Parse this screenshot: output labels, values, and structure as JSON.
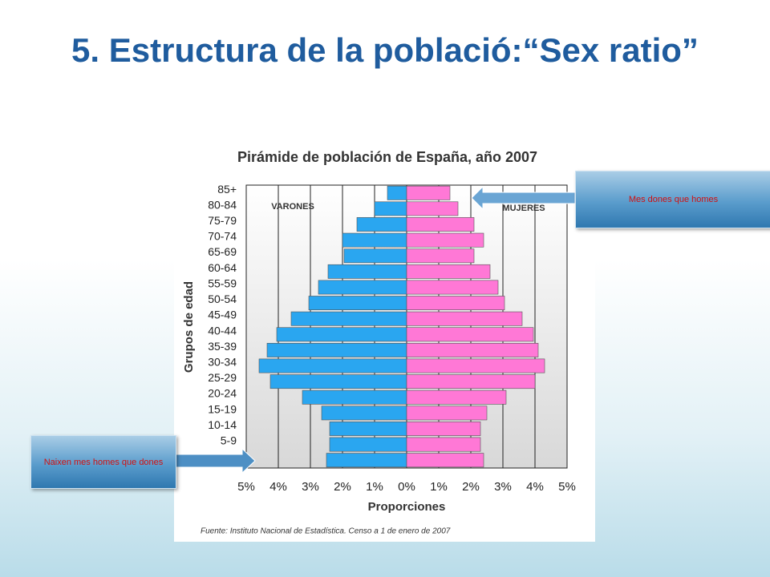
{
  "slide": {
    "title": "5. Estructura de la població:“Sex ratio”"
  },
  "callouts": [
    "Mes dones que homes",
    "Naixen mes homes que dones"
  ],
  "chart_data": {
    "type": "pyramid",
    "title": "Pirámide de población de España, año 2007",
    "y_label": "Grupos de edad",
    "x_label": "Proporciones",
    "source": "Fuente: Instituto Nacional de Estadística. Censo a 1 de enero de 2007",
    "categories": [
      null,
      "5-9",
      "10-14",
      "15-19",
      "20-24",
      "25-29",
      "30-34",
      "35-39",
      "40-44",
      "45-49",
      "50-54",
      "55-59",
      "60-64",
      "65-69",
      "70-74",
      "75-79",
      "80-84",
      "85+"
    ],
    "series": [
      {
        "name": "VARONES",
        "color": "#2aa6f0",
        "side": "left",
        "values": [
          2.5,
          2.4,
          2.4,
          2.65,
          3.25,
          4.25,
          4.6,
          4.35,
          4.05,
          3.6,
          3.05,
          2.75,
          2.45,
          1.95,
          2.0,
          1.55,
          1.0,
          0.6
        ]
      },
      {
        "name": "MUJERES",
        "color": "#ff78d6",
        "side": "right",
        "values": [
          2.4,
          2.3,
          2.3,
          2.5,
          3.1,
          4.0,
          4.3,
          4.1,
          3.95,
          3.6,
          3.05,
          2.85,
          2.6,
          2.1,
          2.4,
          2.1,
          1.6,
          1.35
        ]
      }
    ],
    "xlim": [
      -5,
      5
    ],
    "xticks": [
      {
        "value": -5,
        "label": "5%"
      },
      {
        "value": -4,
        "label": "4%"
      },
      {
        "value": -3,
        "label": "3%"
      },
      {
        "value": -2,
        "label": "2%"
      },
      {
        "value": -1,
        "label": "1%"
      },
      {
        "value": 0,
        "label": "0%"
      },
      {
        "value": 1,
        "label": "1%"
      },
      {
        "value": 2,
        "label": "2%"
      },
      {
        "value": 3,
        "label": "3%"
      },
      {
        "value": 4,
        "label": "4%"
      },
      {
        "value": 5,
        "label": "5%"
      }
    ],
    "grid": true
  }
}
